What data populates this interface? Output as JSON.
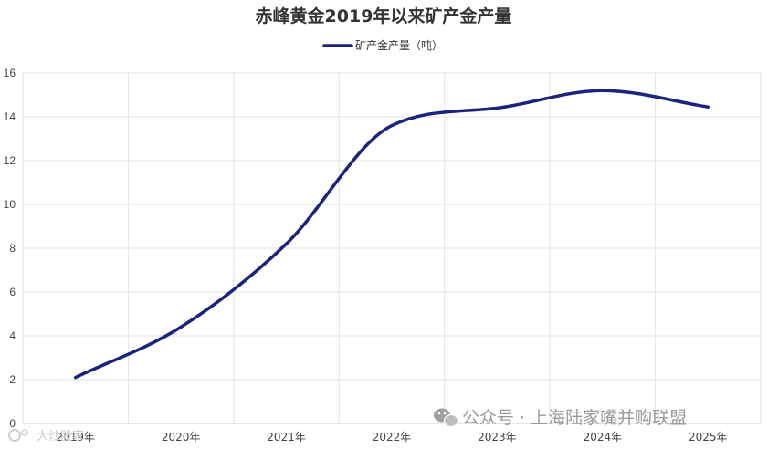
{
  "chart_data": {
    "type": "line",
    "title": "赤峰黄金2019年以来矿产金产量",
    "categories": [
      "2019年",
      "2020年",
      "2021年",
      "2022年",
      "2023年",
      "2024年",
      "2025年"
    ],
    "series": [
      {
        "name": "矿产金产量（吨）",
        "values": [
          2.1,
          4.4,
          8.2,
          13.6,
          14.4,
          15.2,
          14.45
        ]
      }
    ],
    "ylim": [
      0,
      16
    ],
    "yticks": [
      0,
      2,
      4,
      6,
      8,
      10,
      12,
      14,
      16
    ],
    "grid": true,
    "legend_position": "top-center",
    "colors": {
      "line": "#1a237e"
    }
  },
  "watermark": {
    "text": "公众号 · 上海陆家嘴并购联盟",
    "icon": "wechat-icon",
    "corner_text": "大炒股家"
  }
}
